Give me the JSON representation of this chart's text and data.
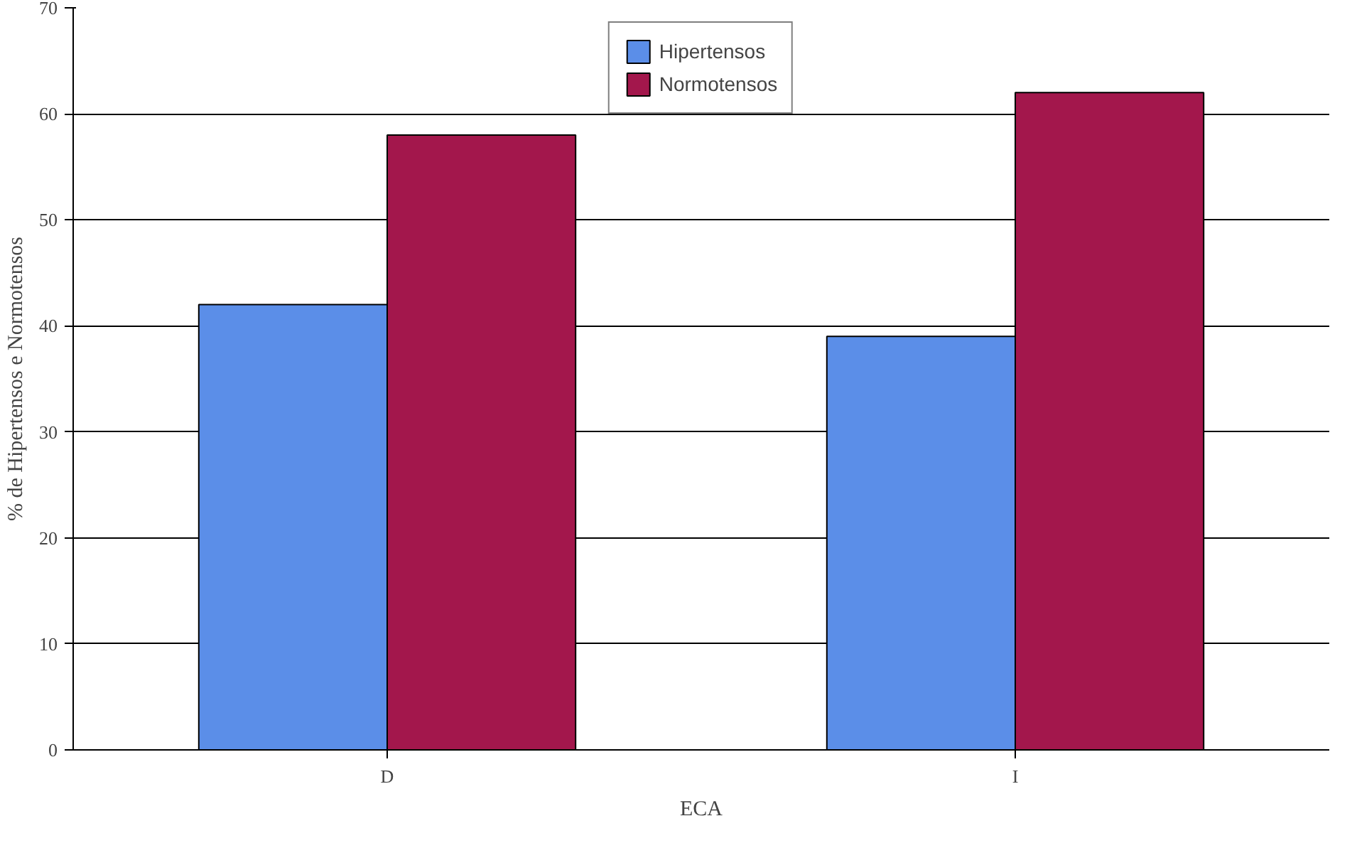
{
  "chart_data": {
    "type": "bar",
    "categories": [
      "D",
      "I"
    ],
    "xlabel": "ECA",
    "ylabel": "% de Hipertensos e Normotensos",
    "series": [
      {
        "name": "Hipertensos",
        "color": "#5b8ee8",
        "values": [
          42,
          39
        ]
      },
      {
        "name": "Normotensos",
        "color": "#a3174c",
        "values": [
          58,
          62
        ]
      }
    ],
    "ylim": [
      0,
      70
    ],
    "yticks": [
      0,
      10,
      20,
      30,
      40,
      50,
      60,
      70
    ],
    "grid": "y",
    "legend": "top"
  }
}
